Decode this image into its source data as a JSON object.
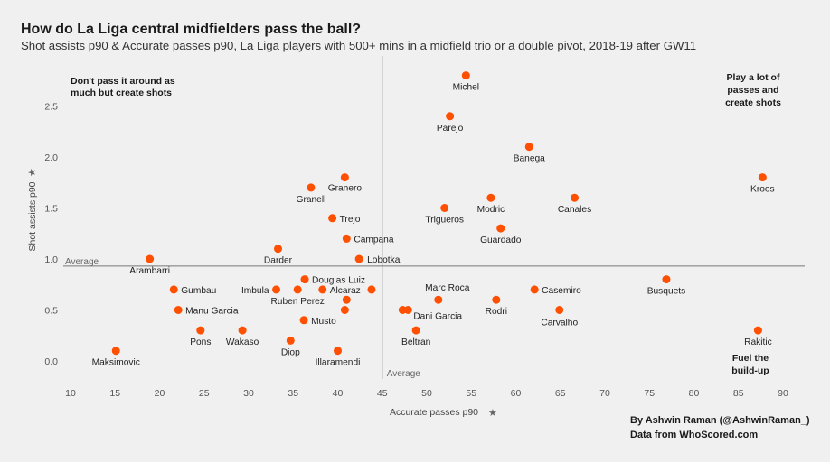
{
  "chart_data": {
    "type": "scatter",
    "title": "How do La Liga central midfielders pass the ball?",
    "subtitle": "Shot assists p90 & Accurate passes p90, La Liga players with 500+ mins in a midfield trio or a double pivot, 2018-19 after GW11",
    "xlabel": "Accurate passes p90",
    "ylabel": "Shot assists p90",
    "xlim": [
      10,
      90
    ],
    "ylim": [
      -0.2,
      2.9
    ],
    "xticks": [
      "10",
      "15",
      "20",
      "25",
      "30",
      "35",
      "40",
      "45",
      "50",
      "55",
      "60",
      "65",
      "70",
      "75",
      "80",
      "85",
      "90"
    ],
    "yticks": [
      "0.0",
      "0.5",
      "1.0",
      "1.5",
      "2.0",
      "2.5"
    ],
    "average_x": 45,
    "average_y": 0.93,
    "average_label": "Average",
    "point_color": "#ff4f00",
    "points": [
      {
        "name": "Michel",
        "x": 54.4,
        "y": 2.8
      },
      {
        "name": "Parejo",
        "x": 52.6,
        "y": 2.4
      },
      {
        "name": "Banega",
        "x": 61.5,
        "y": 2.1
      },
      {
        "name": "Kroos",
        "x": 87.7,
        "y": 1.8
      },
      {
        "name": "Canales",
        "x": 66.6,
        "y": 1.6
      },
      {
        "name": "Modric",
        "x": 57.2,
        "y": 1.6
      },
      {
        "name": "Trigueros",
        "x": 52.0,
        "y": 1.5
      },
      {
        "name": "Guardado",
        "x": 58.3,
        "y": 1.3
      },
      {
        "name": "Granero",
        "x": 40.8,
        "y": 1.8
      },
      {
        "name": "Granell",
        "x": 37.0,
        "y": 1.7
      },
      {
        "name": "Trejo",
        "x": 39.4,
        "y": 1.4
      },
      {
        "name": "Campana",
        "x": 41.0,
        "y": 1.2
      },
      {
        "name": "Darder",
        "x": 33.3,
        "y": 1.1
      },
      {
        "name": "Arambarri",
        "x": 18.9,
        "y": 1.0
      },
      {
        "name": "Lobotka",
        "x": 42.4,
        "y": 1.0
      },
      {
        "name": "Douglas Luiz",
        "x": 36.3,
        "y": 0.8
      },
      {
        "name": "Gumbau",
        "x": 21.6,
        "y": 0.7
      },
      {
        "name": "Imbula",
        "x": 33.1,
        "y": 0.7
      },
      {
        "name": "Ruben Perez",
        "x": 35.5,
        "y": 0.7
      },
      {
        "name": "Alcaraz",
        "x": 38.3,
        "y": 0.7
      },
      {
        "name": "Casemiro",
        "x": 62.1,
        "y": 0.7
      },
      {
        "name": "Busquets",
        "x": 76.9,
        "y": 0.8
      },
      {
        "name": "Marc Roca",
        "x": 51.3,
        "y": 0.6
      },
      {
        "name": "Rodri",
        "x": 57.8,
        "y": 0.6
      },
      {
        "name": "Manu Garcia",
        "x": 22.1,
        "y": 0.5
      },
      {
        "name": "Musto",
        "x": 36.2,
        "y": 0.4
      },
      {
        "name": "Dani Garcia",
        "x": 47.9,
        "y": 0.5
      },
      {
        "name": "Carvalho",
        "x": 64.9,
        "y": 0.5
      },
      {
        "name": "Pons",
        "x": 24.6,
        "y": 0.3
      },
      {
        "name": "Wakaso",
        "x": 29.3,
        "y": 0.3
      },
      {
        "name": "Diop",
        "x": 34.7,
        "y": 0.2
      },
      {
        "name": "Beltran",
        "x": 48.8,
        "y": 0.3
      },
      {
        "name": "Rakitic",
        "x": 87.2,
        "y": 0.3
      },
      {
        "name": "Maksimovic",
        "x": 15.1,
        "y": 0.1
      },
      {
        "name": "Illaramendi",
        "x": 40.0,
        "y": 0.1
      }
    ],
    "quadrant_labels": {
      "top_left": [
        "Don't pass it around as",
        "much but create shots"
      ],
      "top_right": [
        "Play a lot of",
        "passes and",
        "create shots"
      ],
      "bottom_right": [
        "Fuel the",
        "build-up"
      ]
    }
  },
  "credits": {
    "author": "By Ashwin Raman (@AshwinRaman_)",
    "source": "Data from WhoScored.com"
  },
  "icons": {
    "axis_pin": "pin-icon"
  }
}
